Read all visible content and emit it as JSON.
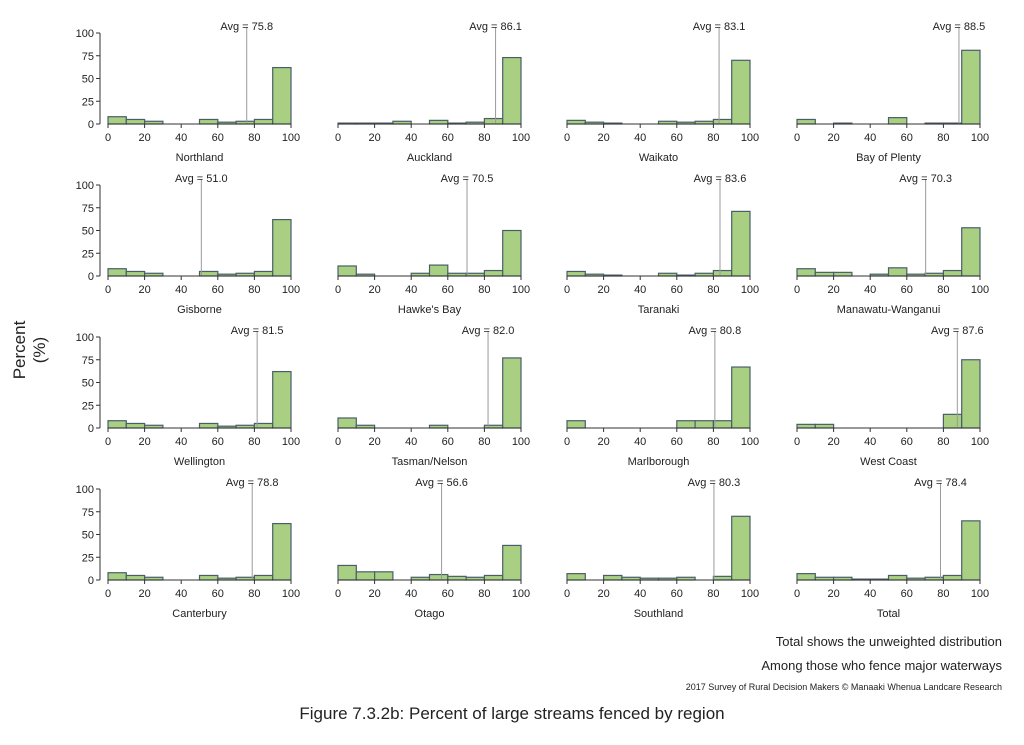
{
  "chart_data": {
    "type": "bar",
    "ylabel": "Percent (%)",
    "x_ticks": [
      0,
      20,
      40,
      60,
      80,
      100
    ],
    "y_ticks": [
      0,
      25,
      50,
      75,
      100
    ],
    "xlim": [
      0,
      100
    ],
    "ylim": [
      0,
      100
    ],
    "bin_width": 10,
    "bin_starts": [
      0,
      10,
      20,
      30,
      40,
      50,
      60,
      70,
      80,
      90
    ],
    "avg_prefix": "Avg = ",
    "colors": {
      "bar_fill": "#a9cf83",
      "bar_stroke": "#4a5e6a",
      "avg_line": "#9a9a9a",
      "axis": "#333333"
    },
    "panels": [
      {
        "name": "Northland",
        "avg": "75.8",
        "avg_value": 75.8,
        "values": [
          8,
          5,
          3,
          0,
          0,
          5,
          2,
          3,
          5,
          62
        ]
      },
      {
        "name": "Auckland",
        "avg": "86.1",
        "avg_value": 86.1,
        "values": [
          1,
          1,
          1,
          3,
          0,
          4,
          1,
          2,
          6,
          73
        ]
      },
      {
        "name": "Waikato",
        "avg": "83.1",
        "avg_value": 83.1,
        "values": [
          4,
          2,
          1,
          0,
          0,
          3,
          2,
          3,
          5,
          70
        ]
      },
      {
        "name": "Bay of Plenty",
        "avg": "88.5",
        "avg_value": 88.5,
        "values": [
          5,
          0,
          1,
          0,
          0,
          7,
          0,
          1,
          1,
          81
        ]
      },
      {
        "name": "Gisborne",
        "avg": "51.0",
        "avg_value": 51.0,
        "values": [
          8,
          5,
          3,
          0,
          0,
          5,
          2,
          3,
          5,
          62
        ]
      },
      {
        "name": "Hawke's Bay",
        "avg": "70.5",
        "avg_value": 70.5,
        "values": [
          11,
          2,
          0,
          0,
          3,
          12,
          3,
          3,
          6,
          50
        ]
      },
      {
        "name": "Taranaki",
        "avg": "83.6",
        "avg_value": 83.6,
        "values": [
          5,
          2,
          1,
          0,
          0,
          3,
          1,
          3,
          6,
          71
        ]
      },
      {
        "name": "Manawatu-Wanganui",
        "avg": "70.3",
        "avg_value": 70.3,
        "values": [
          8,
          4,
          4,
          0,
          2,
          9,
          2,
          3,
          6,
          53
        ]
      },
      {
        "name": "Wellington",
        "avg": "81.5",
        "avg_value": 81.5,
        "values": [
          8,
          5,
          3,
          0,
          0,
          5,
          2,
          3,
          5,
          62
        ]
      },
      {
        "name": "Tasman/Nelson",
        "avg": "82.0",
        "avg_value": 82.0,
        "values": [
          11,
          3,
          0,
          0,
          0,
          3,
          0,
          0,
          3,
          77
        ]
      },
      {
        "name": "Marlborough",
        "avg": "80.8",
        "avg_value": 80.8,
        "values": [
          8,
          0,
          0,
          0,
          0,
          0,
          8,
          8,
          8,
          67
        ]
      },
      {
        "name": "West Coast",
        "avg": "87.6",
        "avg_value": 87.6,
        "values": [
          4,
          4,
          0,
          0,
          0,
          0,
          0,
          0,
          15,
          75
        ]
      },
      {
        "name": "Canterbury",
        "avg": "78.8",
        "avg_value": 78.8,
        "values": [
          8,
          5,
          3,
          0,
          0,
          5,
          2,
          3,
          5,
          62
        ]
      },
      {
        "name": "Otago",
        "avg": "56.6",
        "avg_value": 56.6,
        "values": [
          16,
          9,
          9,
          0,
          3,
          6,
          4,
          3,
          5,
          38
        ]
      },
      {
        "name": "Southland",
        "avg": "80.3",
        "avg_value": 80.3,
        "values": [
          7,
          0,
          5,
          3,
          2,
          2,
          3,
          0,
          4,
          70
        ]
      },
      {
        "name": "Total",
        "avg": "78.4",
        "avg_value": 78.4,
        "values": [
          7,
          3,
          3,
          1,
          1,
          5,
          2,
          3,
          5,
          65
        ]
      }
    ]
  },
  "notes": {
    "total_note": "Total shows the unweighted distribution",
    "fence_note": "Among those who fence major waterways",
    "source": "2017 Survey of Rural Decision Makers © Manaaki Whenua Landcare Research"
  },
  "caption": "Figure 7.3.2b: Percent of large streams fenced by region"
}
